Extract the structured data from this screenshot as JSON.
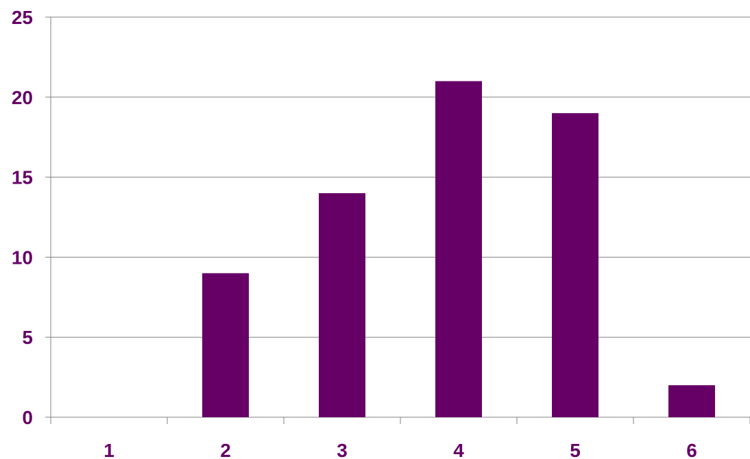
{
  "chart_data": {
    "type": "bar",
    "categories": [
      "1",
      "2",
      "3",
      "4",
      "5",
      "6"
    ],
    "series": [
      {
        "values": [
          0,
          9,
          14,
          21,
          19,
          2
        ]
      }
    ],
    "title": "",
    "xlabel": "",
    "ylabel": "",
    "ylim": [
      0,
      25
    ],
    "yticks": [
      "0",
      "5",
      "10",
      "15",
      "20",
      "25"
    ],
    "grid": true,
    "legend": "none",
    "colors": {
      "bar": "#660066",
      "label": "#660066",
      "grid": "#808080",
      "axis": "#808080"
    }
  }
}
